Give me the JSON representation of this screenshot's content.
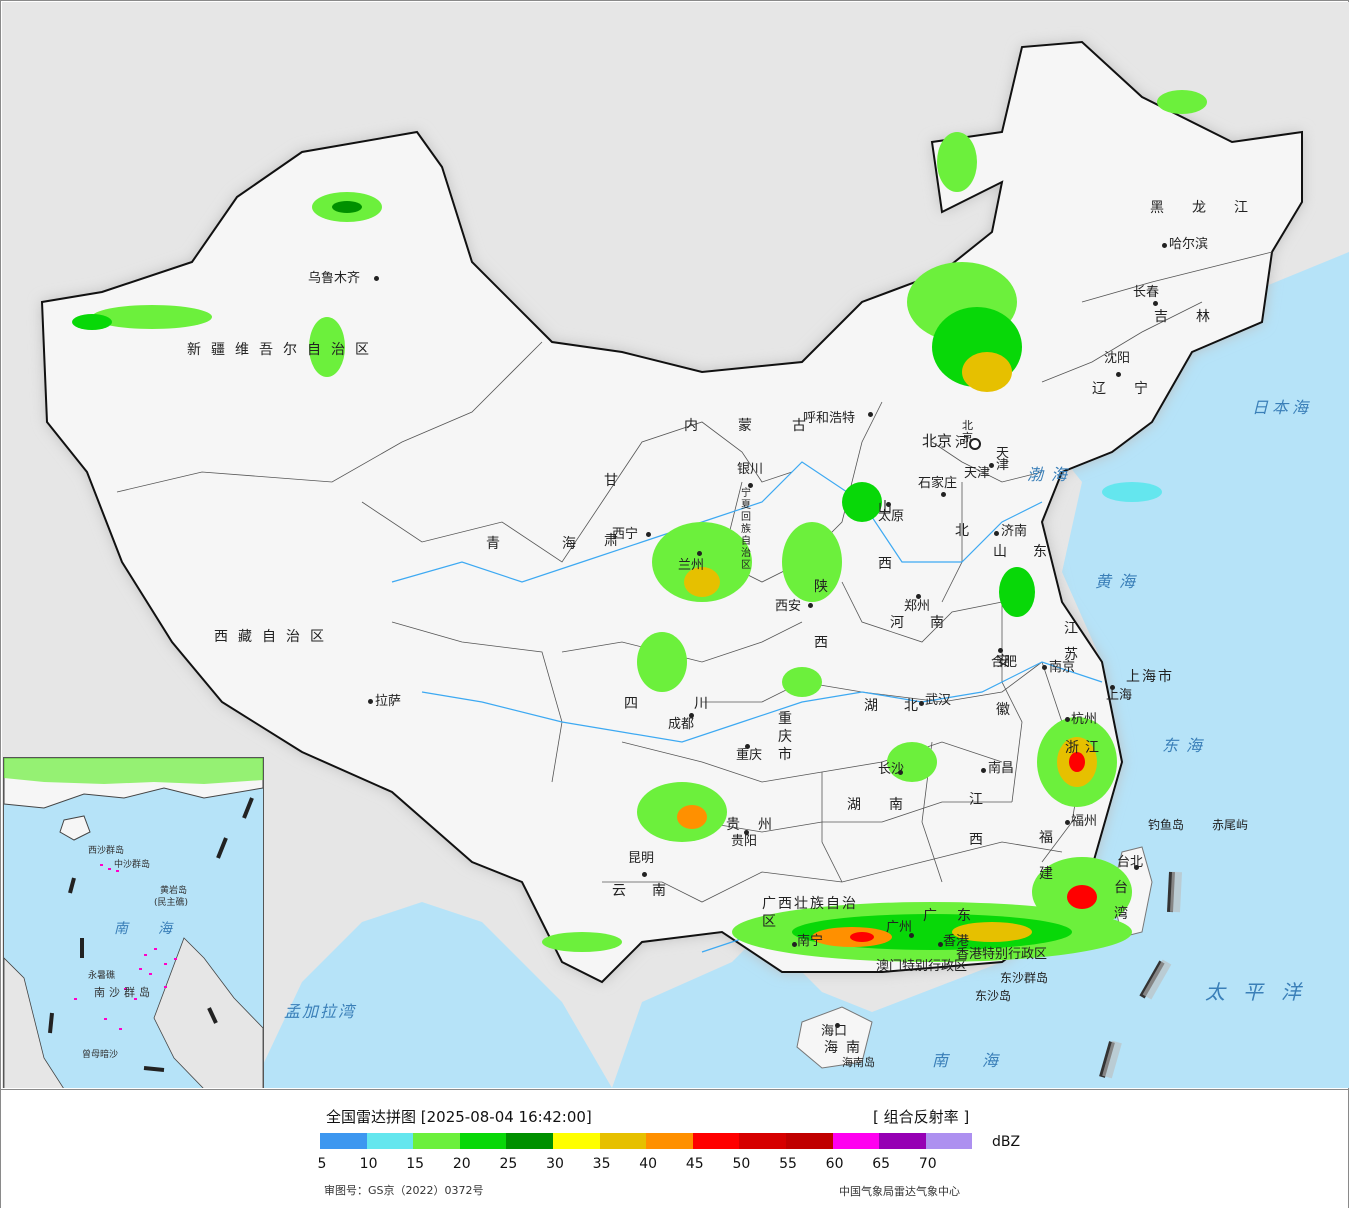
{
  "legend": {
    "title": "全国雷达拼图 [2025-08-04 16:42:00]",
    "product": "[ 组合反射率 ]",
    "unit": "dBZ",
    "review_number": "审图号：GS京（2022）0372号",
    "organization": "中国气象局雷达气象中心",
    "ticks": [
      "5",
      "10",
      "15",
      "20",
      "25",
      "30",
      "35",
      "40",
      "45",
      "50",
      "55",
      "60",
      "65",
      "70"
    ],
    "colors": [
      "#3d97f0",
      "#64e6ee",
      "#6cf03c",
      "#08d808",
      "#009000",
      "#ffff00",
      "#e6c000",
      "#ff9000",
      "#ff0000",
      "#d60000",
      "#c00000",
      "#ff00f0",
      "#9600b4",
      "#ad90f0"
    ]
  },
  "provinces": [
    {
      "id": "xinjiang",
      "text": "新疆维吾尔自治区"
    },
    {
      "id": "xizang",
      "text": "西藏自治区"
    },
    {
      "id": "qinghai",
      "text": "青海"
    },
    {
      "id": "neimenggu",
      "text": "内蒙古"
    },
    {
      "id": "heilongjiang",
      "text": "黑龙江"
    },
    {
      "id": "jilin",
      "text": "吉林"
    },
    {
      "id": "liaoning",
      "text": "辽宁"
    },
    {
      "id": "hebei",
      "text": "河北"
    },
    {
      "id": "shanxi",
      "text": "山西"
    },
    {
      "id": "shaanxi",
      "text": "陕西"
    },
    {
      "id": "henan",
      "text": "河南"
    },
    {
      "id": "shandong",
      "text": "山东"
    },
    {
      "id": "jiangsu",
      "text": "江苏"
    },
    {
      "id": "anhui",
      "text": "安徽"
    },
    {
      "id": "hubei",
      "text": "湖北"
    },
    {
      "id": "hunan",
      "text": "湖南"
    },
    {
      "id": "jiangxi",
      "text": "江西"
    },
    {
      "id": "zhejiang",
      "text": "浙江"
    },
    {
      "id": "fujian",
      "text": "福建"
    },
    {
      "id": "guangdong",
      "text": "广东"
    },
    {
      "id": "guangxi",
      "text": "广西壮族自治区"
    },
    {
      "id": "guizhou",
      "text": "贵州"
    },
    {
      "id": "yunnan",
      "text": "云南"
    },
    {
      "id": "sichuan",
      "text": "四川"
    },
    {
      "id": "chongqing",
      "text": "重庆市"
    },
    {
      "id": "gansu",
      "text": "甘肃"
    },
    {
      "id": "ningxia",
      "text": "宁夏回族自治区"
    },
    {
      "id": "hainan",
      "text": "海南"
    },
    {
      "id": "taiwan",
      "text": "台湾"
    },
    {
      "id": "shanghai",
      "text": "上海市"
    },
    {
      "id": "tianjin",
      "text": "天津"
    },
    {
      "id": "beijing",
      "text": "北京"
    },
    {
      "id": "hk",
      "text": "香港特别行政区"
    },
    {
      "id": "macao",
      "text": "澳门特别行政区"
    }
  ],
  "cities": [
    {
      "id": "urumqi",
      "text": "乌鲁木齐"
    },
    {
      "id": "lhasa",
      "text": "拉萨"
    },
    {
      "id": "xining",
      "text": "西宁"
    },
    {
      "id": "lanzhou",
      "text": "兰州"
    },
    {
      "id": "yinchuan",
      "text": "银川"
    },
    {
      "id": "hohhot",
      "text": "呼和浩特"
    },
    {
      "id": "beijing-city",
      "text": "北京"
    },
    {
      "id": "tianjin-city",
      "text": "天津"
    },
    {
      "id": "shijiazhuang",
      "text": "石家庄"
    },
    {
      "id": "taiyuan",
      "text": "太原"
    },
    {
      "id": "xian",
      "text": "西安"
    },
    {
      "id": "zhengzhou",
      "text": "郑州"
    },
    {
      "id": "jinan",
      "text": "济南"
    },
    {
      "id": "hefei",
      "text": "合肥"
    },
    {
      "id": "nanjing",
      "text": "南京"
    },
    {
      "id": "shanghai-city",
      "text": "上海"
    },
    {
      "id": "hangzhou",
      "text": "杭州"
    },
    {
      "id": "wuhan",
      "text": "武汉"
    },
    {
      "id": "changsha",
      "text": "长沙"
    },
    {
      "id": "nanchang",
      "text": "南昌"
    },
    {
      "id": "fuzhou",
      "text": "福州"
    },
    {
      "id": "chengdu",
      "text": "成都"
    },
    {
      "id": "chongqing-city",
      "text": "重庆"
    },
    {
      "id": "guiyang",
      "text": "贵阳"
    },
    {
      "id": "kunming",
      "text": "昆明"
    },
    {
      "id": "nanning",
      "text": "南宁"
    },
    {
      "id": "guangzhou",
      "text": "广州"
    },
    {
      "id": "hongkong",
      "text": "香港"
    },
    {
      "id": "haikou",
      "text": "海口"
    },
    {
      "id": "shenyang",
      "text": "沈阳"
    },
    {
      "id": "changchun",
      "text": "长春"
    },
    {
      "id": "harbin",
      "text": "哈尔滨"
    },
    {
      "id": "taipei",
      "text": "台北"
    }
  ],
  "seas": [
    {
      "id": "bohai",
      "text": "渤海"
    },
    {
      "id": "huanghai",
      "text": "黄海"
    },
    {
      "id": "donghai",
      "text": "东海"
    },
    {
      "id": "nanhai",
      "text": "南海"
    },
    {
      "id": "riben",
      "text": "日本海"
    },
    {
      "id": "taipingyang",
      "text": "太平洋"
    },
    {
      "id": "mengjiala",
      "text": "孟加拉湾"
    }
  ],
  "islands": [
    {
      "id": "diaoyu",
      "text": "钓鱼岛"
    },
    {
      "id": "chiwei",
      "text": "赤尾屿"
    },
    {
      "id": "dongsha-islands",
      "text": "东沙群岛"
    },
    {
      "id": "dongsha",
      "text": "东沙岛"
    },
    {
      "id": "hainan-island",
      "text": "海南岛"
    }
  ],
  "inset": [
    {
      "id": "xisha",
      "text": "西沙群岛"
    },
    {
      "id": "zhongsha",
      "text": "中沙群岛"
    },
    {
      "id": "huangyan",
      "text": "黄岩岛"
    },
    {
      "id": "minzhu",
      "text": "(民主礁)"
    },
    {
      "id": "nanhai-inset",
      "text": "南海"
    },
    {
      "id": "yongshu",
      "text": "永暑礁"
    },
    {
      "id": "nansha",
      "text": "南沙群岛"
    },
    {
      "id": "zengmu",
      "text": "曾母暗沙"
    }
  ]
}
